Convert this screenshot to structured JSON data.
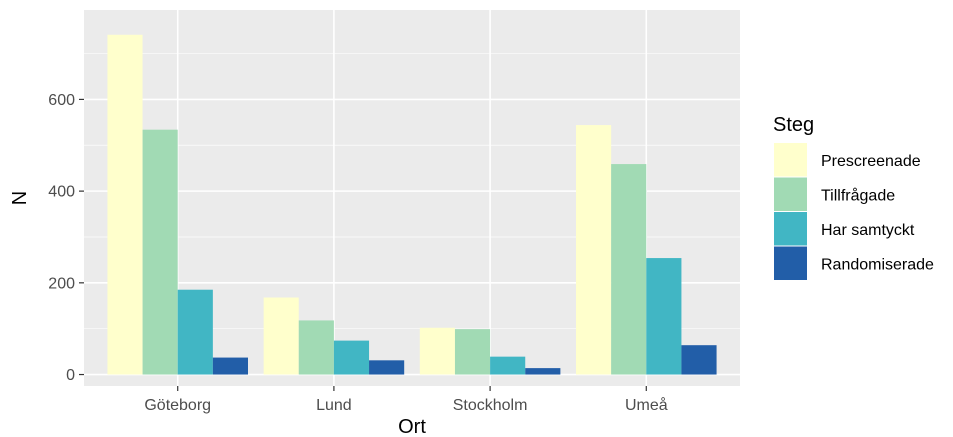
{
  "chart_data": {
    "type": "bar",
    "xlabel": "Ort",
    "ylabel": "N",
    "categories": [
      "Göteborg",
      "Lund",
      "Stockholm",
      "Umeå"
    ],
    "ylim": [
      -25,
      795
    ],
    "yticks": [
      0,
      200,
      400,
      600
    ],
    "grid": true,
    "legend_title": "Steg",
    "legend_position": "right",
    "series": [
      {
        "name": "Prescreenade",
        "color": "#FFFFCC",
        "values": [
          741,
          168,
          102,
          544
        ]
      },
      {
        "name": "Tillfrågade",
        "color": "#A1DAB4",
        "values": [
          534,
          118,
          99,
          459
        ]
      },
      {
        "name": "Har samtyckt",
        "color": "#41B6C4",
        "values": [
          185,
          74,
          39,
          254
        ]
      },
      {
        "name": "Randomiserade",
        "color": "#225EA8",
        "values": [
          37,
          31,
          14,
          64
        ]
      }
    ]
  },
  "colors": {
    "panel_background": "#EBEBEB",
    "grid_major": "#FFFFFF",
    "tick_text": "#4D4D4D"
  }
}
